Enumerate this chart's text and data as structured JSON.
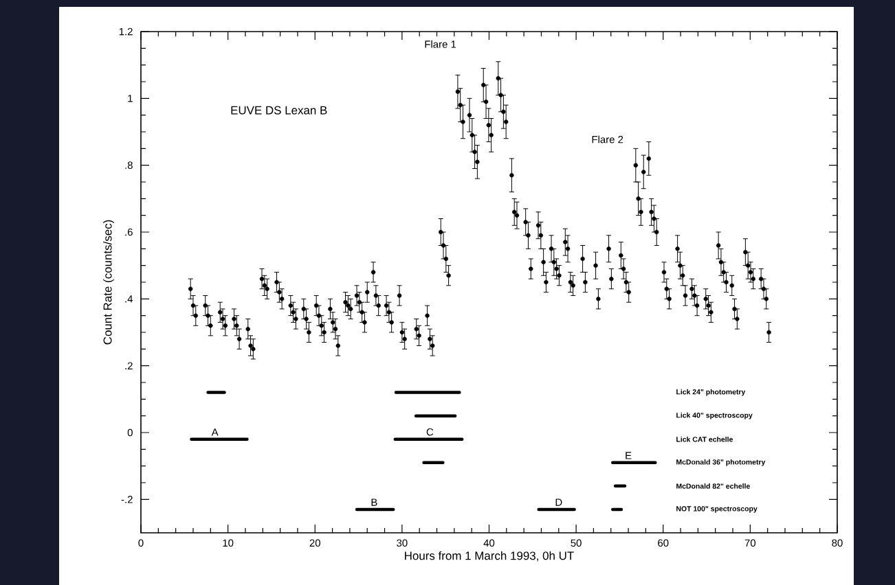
{
  "chart_data": {
    "type": "scatter",
    "xlabel": "Hours from 1 March 1993, 0h UT",
    "ylabel": "Count Rate (counts/sec)",
    "xlim": [
      0,
      80
    ],
    "ylim": [
      -0.3,
      1.2
    ],
    "xticks": [
      0,
      10,
      20,
      30,
      40,
      50,
      60,
      70,
      80
    ],
    "yticks": [
      {
        "value": -0.2,
        "label": "-.2"
      },
      {
        "value": 0,
        "label": "0"
      },
      {
        "value": 0.2,
        "label": ".2"
      },
      {
        "value": 0.4,
        "label": ".4"
      },
      {
        "value": 0.6,
        "label": ".6"
      },
      {
        "value": 0.8,
        "label": ".8"
      },
      {
        "value": 1,
        "label": "1"
      },
      {
        "value": 1.2,
        "label": "1.2"
      }
    ],
    "annotations": [
      "EUVE DS Lexan B",
      "Flare 1",
      "Flare 2",
      {
        "text": "A",
        "x": 8.5,
        "y": -0.02
      },
      {
        "text": "B",
        "x": 26.8,
        "y": -0.23
      },
      {
        "text": "C",
        "x": 33.2,
        "y": -0.02
      },
      {
        "text": "D",
        "x": 48,
        "y": -0.23
      },
      {
        "text": "E",
        "x": 56,
        "y": -0.09
      }
    ],
    "series": [
      {
        "color": "#000000",
        "marker": "circle",
        "x": [
          5.7,
          6.0,
          6.3,
          7.4,
          7.7,
          8.0,
          9.1,
          9.4,
          9.7,
          10.7,
          11.0,
          11.3,
          12.3,
          12.6,
          12.9,
          13.9,
          14.2,
          14.5,
          15.6,
          15.9,
          16.2,
          17.2,
          17.5,
          17.8,
          18.7,
          19.0,
          19.3,
          20.15,
          20.45,
          20.75,
          21.05,
          21.75,
          22.05,
          22.35,
          22.65,
          23.5,
          23.8,
          24.1,
          24.8,
          25.1,
          25.4,
          25.7,
          26.0,
          26.7,
          27.0,
          27.3,
          28.2,
          28.5,
          28.8,
          29.7,
          30.0,
          30.3,
          31.65,
          31.95,
          32.9,
          33.2,
          33.5,
          34.45,
          34.75,
          35.05,
          35.35,
          36.4,
          36.7,
          37.0,
          37.75,
          38.05,
          38.35,
          38.65,
          39.35,
          39.65,
          39.95,
          40.25,
          41.05,
          41.35,
          41.65,
          41.95,
          42.6,
          42.9,
          43.2,
          44.2,
          44.5,
          44.8,
          45.65,
          45.95,
          46.25,
          46.55,
          47.15,
          47.45,
          47.75,
          48.05,
          48.75,
          49.05,
          49.35,
          49.65,
          50.75,
          51.05,
          52.25,
          52.55,
          53.75,
          54.05,
          55.15,
          55.45,
          55.75,
          56.05,
          56.85,
          57.15,
          57.45,
          57.75,
          58.35,
          58.65,
          58.95,
          59.25,
          60.1,
          60.4,
          60.7,
          61.65,
          61.95,
          62.25,
          62.55,
          63.3,
          63.6,
          63.9,
          64.9,
          65.2,
          65.5,
          66.35,
          66.65,
          66.95,
          67.25,
          67.9,
          68.2,
          68.5,
          69.45,
          69.75,
          70.05,
          70.35,
          71.25,
          71.55,
          71.85,
          72.15
        ],
        "values": [
          0.43,
          0.38,
          0.35,
          0.38,
          0.35,
          0.32,
          0.36,
          0.34,
          0.32,
          0.34,
          0.32,
          0.28,
          0.31,
          0.26,
          0.25,
          0.46,
          0.44,
          0.43,
          0.45,
          0.42,
          0.4,
          0.38,
          0.36,
          0.34,
          0.37,
          0.34,
          0.3,
          0.38,
          0.35,
          0.32,
          0.3,
          0.37,
          0.33,
          0.31,
          0.26,
          0.39,
          0.38,
          0.37,
          0.41,
          0.39,
          0.36,
          0.33,
          0.42,
          0.48,
          0.41,
          0.38,
          0.38,
          0.36,
          0.33,
          0.41,
          0.3,
          0.28,
          0.31,
          0.29,
          0.35,
          0.28,
          0.26,
          0.6,
          0.56,
          0.52,
          0.47,
          1.02,
          0.98,
          0.93,
          0.95,
          0.89,
          0.84,
          0.81,
          1.04,
          0.99,
          0.92,
          0.89,
          1.06,
          1.01,
          0.96,
          0.93,
          0.77,
          0.66,
          0.65,
          0.63,
          0.59,
          0.49,
          0.62,
          0.59,
          0.51,
          0.45,
          0.55,
          0.51,
          0.49,
          0.47,
          0.57,
          0.55,
          0.45,
          0.44,
          0.52,
          0.45,
          0.5,
          0.4,
          0.55,
          0.46,
          0.53,
          0.49,
          0.45,
          0.42,
          0.8,
          0.7,
          0.66,
          0.78,
          0.82,
          0.66,
          0.64,
          0.6,
          0.48,
          0.43,
          0.4,
          0.55,
          0.5,
          0.47,
          0.41,
          0.43,
          0.41,
          0.38,
          0.4,
          0.38,
          0.36,
          0.56,
          0.51,
          0.48,
          0.45,
          0.44,
          0.37,
          0.34,
          0.54,
          0.5,
          0.48,
          0.46,
          0.46,
          0.43,
          0.4,
          0.3
        ],
        "errors": [
          0.03,
          0.03,
          0.03,
          0.03,
          0.03,
          0.03,
          0.03,
          0.03,
          0.03,
          0.03,
          0.03,
          0.03,
          0.03,
          0.03,
          0.03,
          0.03,
          0.03,
          0.03,
          0.03,
          0.03,
          0.03,
          0.03,
          0.03,
          0.03,
          0.03,
          0.03,
          0.03,
          0.03,
          0.03,
          0.03,
          0.03,
          0.03,
          0.03,
          0.03,
          0.03,
          0.03,
          0.03,
          0.03,
          0.03,
          0.03,
          0.03,
          0.03,
          0.03,
          0.03,
          0.03,
          0.03,
          0.03,
          0.03,
          0.03,
          0.03,
          0.03,
          0.03,
          0.03,
          0.03,
          0.03,
          0.03,
          0.03,
          0.04,
          0.04,
          0.04,
          0.03,
          0.05,
          0.05,
          0.05,
          0.05,
          0.05,
          0.05,
          0.05,
          0.05,
          0.05,
          0.05,
          0.05,
          0.05,
          0.05,
          0.05,
          0.05,
          0.05,
          0.04,
          0.04,
          0.04,
          0.04,
          0.03,
          0.04,
          0.04,
          0.04,
          0.03,
          0.04,
          0.04,
          0.03,
          0.03,
          0.04,
          0.04,
          0.03,
          0.03,
          0.04,
          0.03,
          0.04,
          0.03,
          0.04,
          0.03,
          0.04,
          0.03,
          0.03,
          0.03,
          0.05,
          0.05,
          0.04,
          0.05,
          0.05,
          0.04,
          0.04,
          0.04,
          0.03,
          0.03,
          0.03,
          0.04,
          0.04,
          0.03,
          0.03,
          0.03,
          0.03,
          0.03,
          0.03,
          0.03,
          0.03,
          0.04,
          0.04,
          0.03,
          0.03,
          0.03,
          0.03,
          0.03,
          0.04,
          0.04,
          0.03,
          0.03,
          0.03,
          0.03,
          0.03,
          0.03
        ]
      },
      {
        "type": "line",
        "name": "Lick 24\" photometry",
        "color": "#000000",
        "marker": "none",
        "x": [
          7.7,
          9.6,
          null,
          29.3,
          36.6
        ],
        "values": [
          0.12,
          0.12,
          null,
          0.12,
          0.12
        ]
      },
      {
        "type": "line",
        "name": "Lick 40\" spectroscopy",
        "color": "#000000",
        "marker": "none",
        "x": [
          31.6,
          36.1
        ],
        "values": [
          0.05,
          0.05
        ]
      },
      {
        "type": "line",
        "name": "Lick CAT echelle",
        "color": "#000000",
        "marker": "none",
        "x": [
          5.8,
          12.2,
          null,
          29.2,
          36.9
        ],
        "values": [
          -0.02,
          -0.02,
          null,
          -0.02,
          -0.02
        ]
      },
      {
        "type": "line",
        "name": "McDonald 36\" photometry",
        "color": "#000000",
        "marker": "none",
        "x": [
          32.5,
          34.7,
          null,
          54.2,
          59.1
        ],
        "values": [
          -0.09,
          -0.09,
          null,
          -0.09,
          -0.09
        ]
      },
      {
        "type": "line",
        "name": "McDonald 82\" echelle",
        "color": "#000000",
        "marker": "none",
        "x": [
          54.5,
          55.6
        ],
        "values": [
          -0.16,
          -0.16
        ]
      },
      {
        "type": "line",
        "name": "NOT 100\" spectroscopy",
        "color": "#000000",
        "marker": "none",
        "x": [
          24.8,
          29.0,
          null,
          45.7,
          49.8,
          null,
          54.2,
          55.2
        ],
        "values": [
          -0.23,
          -0.23,
          null,
          -0.23,
          -0.23,
          null,
          -0.23,
          -0.23
        ]
      }
    ]
  }
}
